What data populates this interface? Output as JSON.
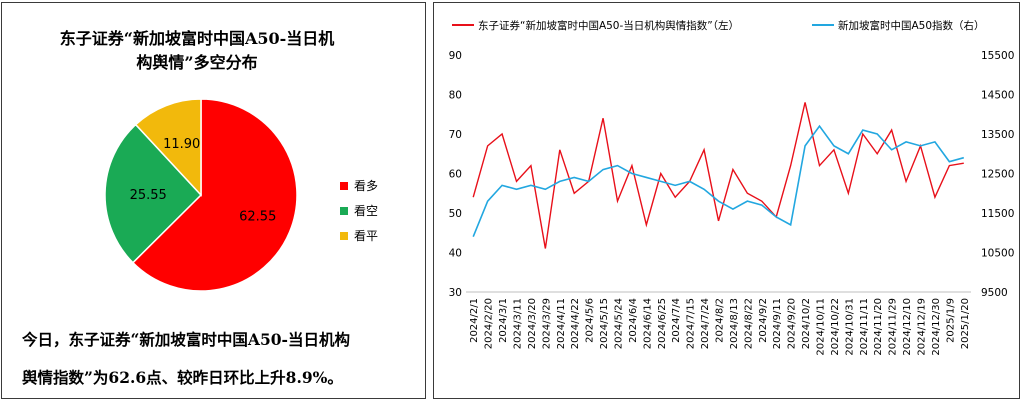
{
  "pie": {
    "title_line1": "东子证券“新加坡富时中国A50-当日机",
    "title_line2": "构舆情”多空分布",
    "slices": [
      {
        "name": "看多",
        "value": 62.55,
        "label": "62.55",
        "color": "#ff0000"
      },
      {
        "name": "看空",
        "value": 25.55,
        "label": "25.55",
        "color": "#1aaa55"
      },
      {
        "name": "看平",
        "value": 11.9,
        "label": "11.90",
        "color": "#f2b90c"
      }
    ]
  },
  "summary": {
    "line1": "今日，东子证券“新加坡富时中国A50-当日机构",
    "line2": "舆情指数”为62.6点、较昨日环比上升8.9%。"
  },
  "chart_data": {
    "type": "line",
    "series": [
      {
        "name": "东子证券“新加坡富时中国A50-当日机构舆情指数”（左）",
        "axis": "left",
        "color": "#e8101a"
      },
      {
        "name": "新加坡富时中国A50指数（右）",
        "axis": "right",
        "color": "#22a7e0"
      }
    ],
    "y_left": {
      "ylim": [
        30,
        90
      ],
      "ticks": [
        "30",
        "40",
        "50",
        "60",
        "70",
        "80",
        "90"
      ]
    },
    "y_right": {
      "ylim": [
        9500,
        15500
      ],
      "ticks": [
        "9500",
        "10500",
        "11500",
        "12500",
        "13500",
        "14500",
        "15500"
      ]
    },
    "x_ticks": [
      "2024/2/1",
      "2024/2/20",
      "2024/3/1",
      "2024/3/11",
      "2024/3/20",
      "2024/3/29",
      "2024/4/11",
      "2024/4/22",
      "2024/5/6",
      "2024/5/15",
      "2024/5/24",
      "2024/6/4",
      "2024/6/14",
      "2024/6/25",
      "2024/7/4",
      "2024/7/15",
      "2024/7/24",
      "2024/8/2",
      "2024/8/13",
      "2024/8/22",
      "2024/9/2",
      "2024/9/11",
      "2024/9/20",
      "2024/10/2",
      "2024/10/11",
      "2024/10/22",
      "2024/10/31",
      "2024/11/11",
      "2024/11/20",
      "2024/11/29",
      "2024/12/10",
      "2024/12/19",
      "2024/12/30",
      "2025/1/9",
      "2025/1/20"
    ],
    "x": [
      "2024/2/1",
      "2024/2/20",
      "2024/3/1",
      "2024/3/11",
      "2024/3/20",
      "2024/3/29",
      "2024/4/11",
      "2024/4/22",
      "2024/5/6",
      "2024/5/15",
      "2024/5/24",
      "2024/6/4",
      "2024/6/14",
      "2024/6/25",
      "2024/7/4",
      "2024/7/15",
      "2024/7/24",
      "2024/8/2",
      "2024/8/13",
      "2024/8/22",
      "2024/9/2",
      "2024/9/11",
      "2024/9/20",
      "2024/10/2",
      "2024/10/11",
      "2024/10/22",
      "2024/10/31",
      "2024/11/11",
      "2024/11/20",
      "2024/11/29",
      "2024/12/10",
      "2024/12/19",
      "2024/12/30",
      "2025/1/9",
      "2025/1/20"
    ],
    "sentiment": [
      54,
      67,
      70,
      58,
      62,
      41,
      66,
      55,
      58,
      74,
      53,
      62,
      47,
      60,
      54,
      58,
      66,
      48,
      61,
      55,
      53,
      49,
      62,
      78,
      62,
      66,
      55,
      70,
      65,
      71,
      58,
      67,
      54,
      62,
      62.6
    ],
    "index": [
      10900,
      11800,
      12200,
      12100,
      12200,
      12100,
      12300,
      12400,
      12300,
      12600,
      12700,
      12500,
      12400,
      12300,
      12200,
      12300,
      12100,
      11800,
      11600,
      11800,
      11700,
      11400,
      11200,
      13200,
      13700,
      13200,
      13000,
      13600,
      13500,
      13100,
      13300,
      13200,
      13300,
      12800,
      12900
    ]
  }
}
